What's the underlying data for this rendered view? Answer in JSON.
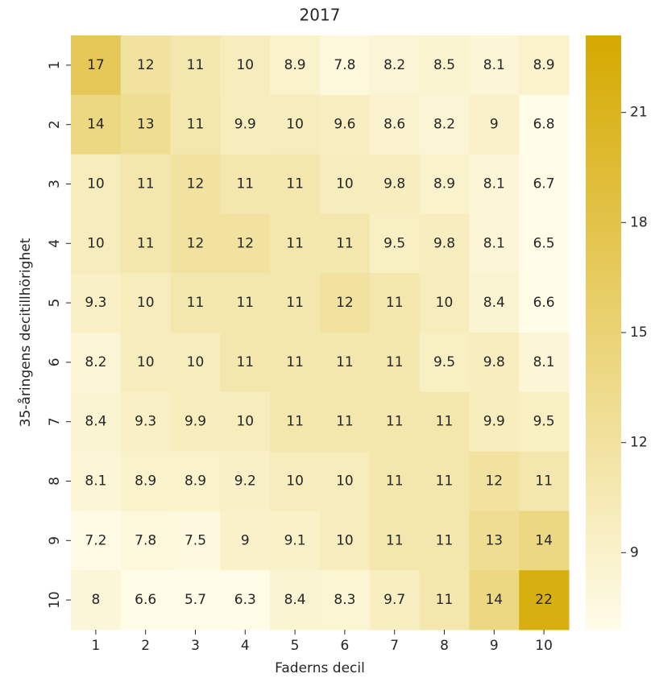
{
  "chart_data": {
    "type": "heatmap",
    "title": "2017",
    "xlabel": "Faderns decil",
    "ylabel": "35-åringens decitillhörighet",
    "x_categories": [
      "1",
      "2",
      "3",
      "4",
      "5",
      "6",
      "7",
      "8",
      "9",
      "10"
    ],
    "y_categories": [
      "1",
      "2",
      "3",
      "4",
      "5",
      "6",
      "7",
      "8",
      "9",
      "10"
    ],
    "values": [
      [
        17,
        12,
        11,
        10,
        8.9,
        7.8,
        8.2,
        8.5,
        8.1,
        8.9
      ],
      [
        14,
        13,
        11,
        9.9,
        10,
        9.6,
        8.6,
        8.2,
        9,
        6.8
      ],
      [
        10,
        11,
        12,
        11,
        11,
        10,
        9.8,
        8.9,
        8.1,
        6.7
      ],
      [
        10,
        11,
        12,
        12,
        11,
        11,
        9.5,
        9.8,
        8.1,
        6.5
      ],
      [
        9.3,
        10,
        11,
        11,
        11,
        12,
        11,
        10,
        8.4,
        6.6
      ],
      [
        8.2,
        10,
        10,
        11,
        11,
        11,
        11,
        9.5,
        9.8,
        8.1
      ],
      [
        8.4,
        9.3,
        9.9,
        10,
        11,
        11,
        11,
        11,
        9.9,
        9.5
      ],
      [
        8.1,
        8.9,
        8.9,
        9.2,
        10,
        10,
        11,
        11,
        12,
        11
      ],
      [
        7.2,
        7.8,
        7.5,
        9,
        9.1,
        10,
        11,
        11,
        13,
        14
      ],
      [
        8,
        6.6,
        5.7,
        6.3,
        8.4,
        8.3,
        9.7,
        11,
        14,
        22
      ]
    ],
    "zlim": [
      6.9,
      23.1
    ],
    "zticks": [
      9,
      12,
      15,
      18,
      21
    ],
    "colormap": [
      "#fffce8",
      "#d5a900"
    ]
  }
}
